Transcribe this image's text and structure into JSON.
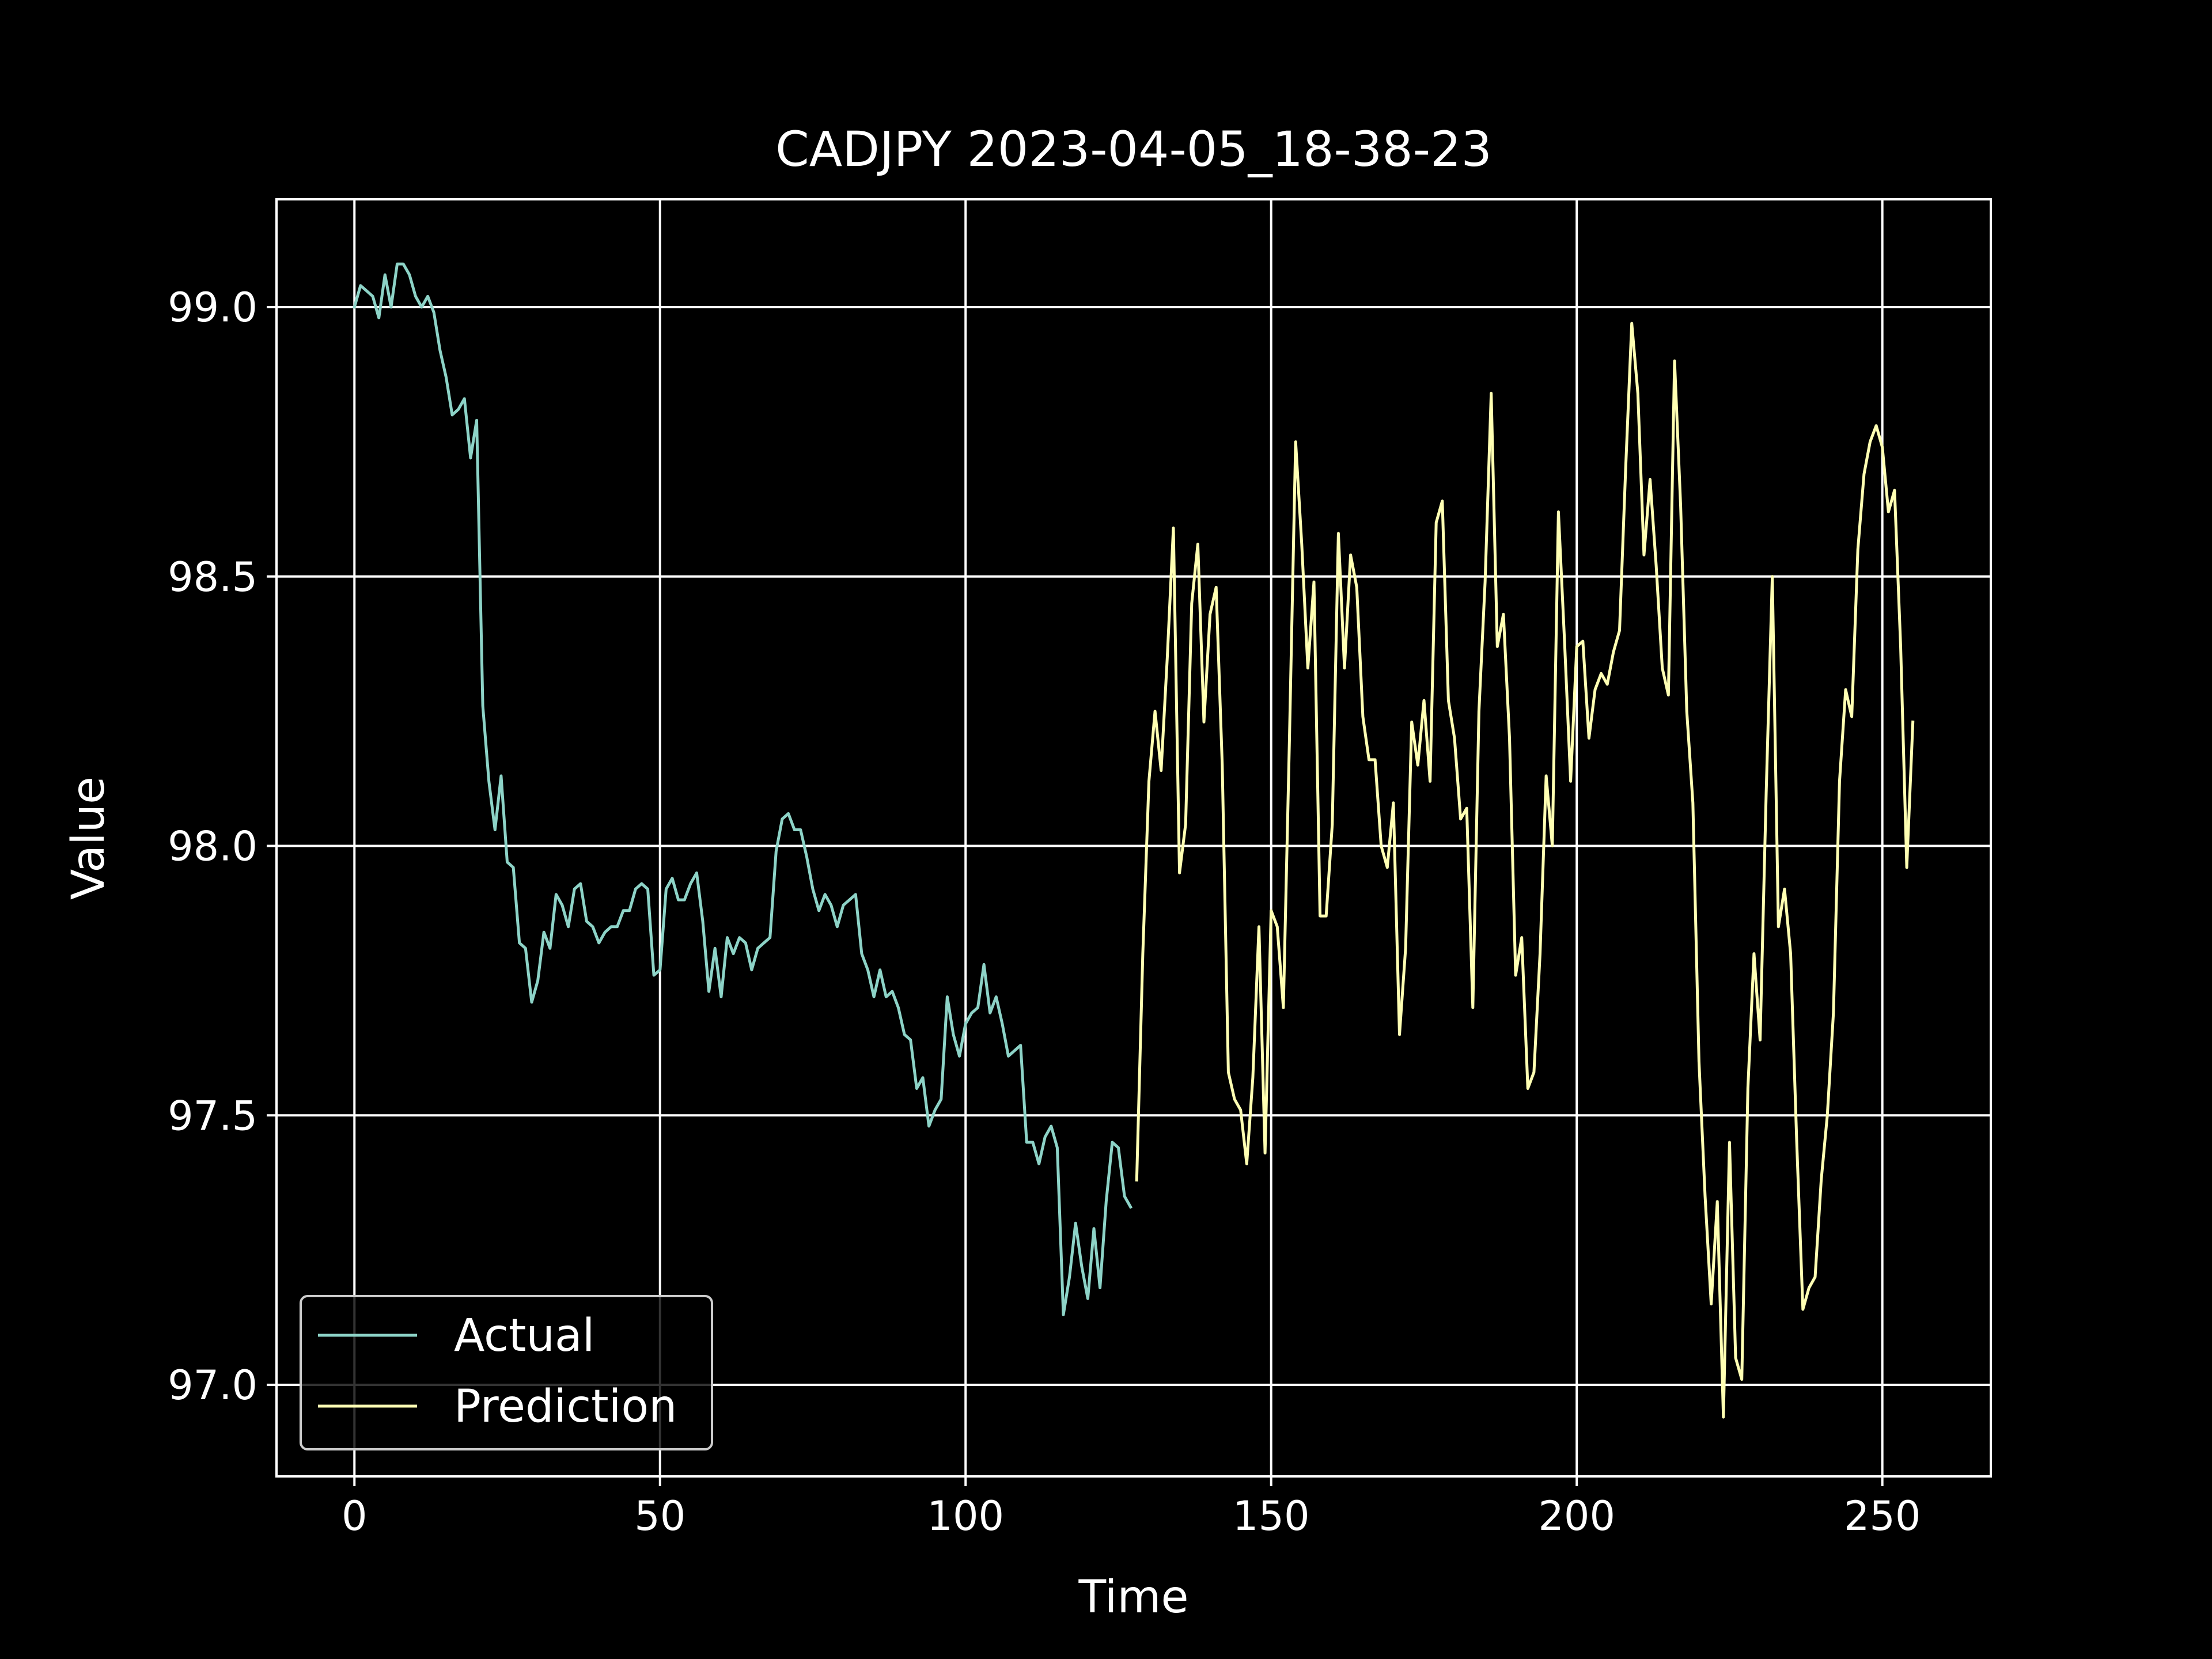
{
  "chart_data": {
    "type": "line",
    "title": "CADJPY 2023-04-05_18-38-23",
    "xlabel": "Time",
    "ylabel": "Value",
    "xlim": [
      -12.75,
      267.75
    ],
    "ylim": [
      96.83,
      99.2
    ],
    "xticks": [
      0,
      50,
      100,
      150,
      200,
      250
    ],
    "xtick_labels": [
      "0",
      "50",
      "100",
      "150",
      "200",
      "250"
    ],
    "yticks": [
      97.0,
      97.5,
      98.0,
      98.5,
      99.0
    ],
    "ytick_labels": [
      "97.0",
      "97.5",
      "98.0",
      "98.5",
      "99.0"
    ],
    "grid": true,
    "legend_position": "lower-left",
    "background": "#000000",
    "foreground": "#ffffff",
    "series": [
      {
        "name": "Actual",
        "color": "#8dd3c7",
        "x_start": 0,
        "values": [
          99.0,
          99.04,
          99.03,
          99.02,
          98.98,
          99.06,
          99.0,
          99.08,
          99.08,
          99.06,
          99.02,
          99.0,
          99.02,
          98.99,
          98.92,
          98.87,
          98.8,
          98.81,
          98.83,
          98.72,
          98.79,
          98.26,
          98.12,
          98.03,
          98.13,
          97.97,
          97.96,
          97.82,
          97.81,
          97.71,
          97.75,
          97.84,
          97.81,
          97.91,
          97.89,
          97.85,
          97.92,
          97.93,
          97.86,
          97.85,
          97.82,
          97.84,
          97.85,
          97.85,
          97.88,
          97.88,
          97.92,
          97.93,
          97.92,
          97.76,
          97.77,
          97.92,
          97.94,
          97.9,
          97.9,
          97.93,
          97.95,
          97.86,
          97.73,
          97.81,
          97.72,
          97.83,
          97.8,
          97.83,
          97.82,
          97.77,
          97.81,
          97.82,
          97.83,
          97.99,
          98.05,
          98.06,
          98.03,
          98.03,
          97.98,
          97.92,
          97.88,
          97.91,
          97.89,
          97.85,
          97.89,
          97.9,
          97.91,
          97.8,
          97.77,
          97.72,
          97.77,
          97.72,
          97.73,
          97.7,
          97.65,
          97.64,
          97.55,
          97.57,
          97.48,
          97.51,
          97.53,
          97.72,
          97.65,
          97.61,
          97.67,
          97.69,
          97.7,
          97.78,
          97.69,
          97.72,
          97.67,
          97.61,
          97.62,
          97.63,
          97.45,
          97.45,
          97.41,
          97.46,
          97.48,
          97.44,
          97.13,
          97.2,
          97.3,
          97.22,
          97.16,
          97.29,
          97.18,
          97.34,
          97.45,
          97.44,
          97.35,
          97.33
        ]
      },
      {
        "name": "Prediction",
        "color": "#ffffb3",
        "x_start": 128,
        "values": [
          97.38,
          97.8,
          98.12,
          98.25,
          98.14,
          98.35,
          98.59,
          97.95,
          98.04,
          98.45,
          98.56,
          98.23,
          98.43,
          98.48,
          98.15,
          97.58,
          97.53,
          97.51,
          97.41,
          97.57,
          97.85,
          97.43,
          97.88,
          97.85,
          97.7,
          98.2,
          98.75,
          98.56,
          98.33,
          98.49,
          97.87,
          97.87,
          98.04,
          98.58,
          98.33,
          98.54,
          98.48,
          98.24,
          98.16,
          98.16,
          98.0,
          97.96,
          98.08,
          97.65,
          97.81,
          98.23,
          98.15,
          98.27,
          98.12,
          98.6,
          98.64,
          98.27,
          98.2,
          98.05,
          98.07,
          97.7,
          98.25,
          98.49,
          98.84,
          98.37,
          98.43,
          98.2,
          97.76,
          97.83,
          97.55,
          97.58,
          97.8,
          98.13,
          98.0,
          98.62,
          98.38,
          98.12,
          98.37,
          98.38,
          98.2,
          98.29,
          98.32,
          98.3,
          98.36,
          98.4,
          98.7,
          98.97,
          98.84,
          98.54,
          98.68,
          98.52,
          98.33,
          98.28,
          98.9,
          98.63,
          98.25,
          98.08,
          97.6,
          97.35,
          97.15,
          97.34,
          96.94,
          97.45,
          97.05,
          97.01,
          97.55,
          97.8,
          97.64,
          98.1,
          98.5,
          97.85,
          97.92,
          97.8,
          97.45,
          97.14,
          97.18,
          97.2,
          97.38,
          97.5,
          97.69,
          98.12,
          98.29,
          98.24,
          98.55,
          98.69,
          98.75,
          98.78,
          98.74,
          98.62,
          98.66,
          98.37,
          97.96,
          98.23
        ]
      }
    ]
  }
}
